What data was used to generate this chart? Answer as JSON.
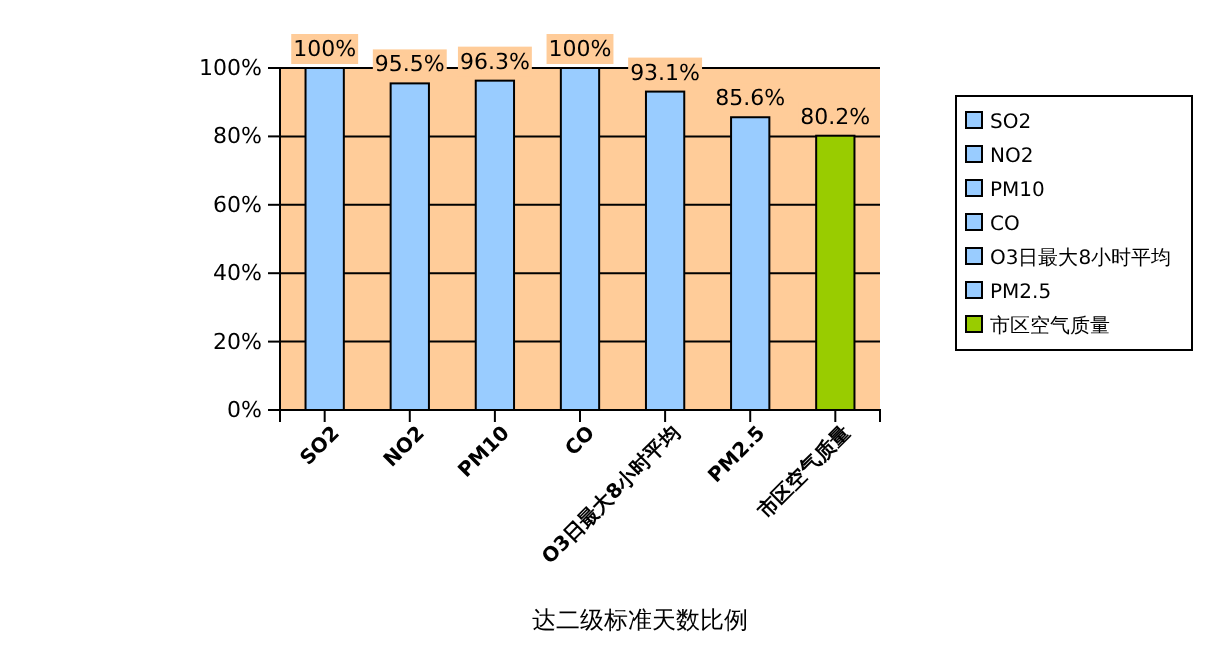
{
  "chart_data": {
    "type": "bar",
    "title": "达二级标准天数比例",
    "categories": [
      "SO2",
      "NO2",
      "PM10",
      "CO",
      "O3日最大8小时平均",
      "PM2.5",
      "市区空气质量"
    ],
    "series": [
      {
        "name": "SO2",
        "color": "#99ccff",
        "values": [
          100,
          null,
          null,
          null,
          null,
          null,
          null
        ],
        "value_labels": [
          "100%",
          null,
          null,
          null,
          null,
          null,
          null
        ]
      },
      {
        "name": "NO2",
        "color": "#99ccff",
        "values": [
          null,
          95.5,
          null,
          null,
          null,
          null,
          null
        ],
        "value_labels": [
          null,
          "95.5%",
          null,
          null,
          null,
          null,
          null
        ]
      },
      {
        "name": "PM10",
        "color": "#99ccff",
        "values": [
          null,
          null,
          96.3,
          null,
          null,
          null,
          null
        ],
        "value_labels": [
          null,
          null,
          "96.3%",
          null,
          null,
          null,
          null
        ]
      },
      {
        "name": "CO",
        "color": "#99ccff",
        "values": [
          null,
          null,
          null,
          100,
          null,
          null,
          null
        ],
        "value_labels": [
          null,
          null,
          null,
          "100%",
          null,
          null,
          null
        ]
      },
      {
        "name": "O3日最大8小时平均",
        "color": "#99ccff",
        "values": [
          null,
          null,
          null,
          null,
          93.1,
          null,
          null
        ],
        "value_labels": [
          null,
          null,
          null,
          null,
          "93.1%",
          null,
          null
        ]
      },
      {
        "name": "PM2.5",
        "color": "#99ccff",
        "values": [
          null,
          null,
          null,
          null,
          null,
          85.6,
          null
        ],
        "value_labels": [
          null,
          null,
          null,
          null,
          null,
          "85.6%",
          null
        ]
      },
      {
        "name": "市区空气质量",
        "color": "#99cc00",
        "values": [
          null,
          null,
          null,
          null,
          null,
          null,
          80.2
        ],
        "value_labels": [
          null,
          null,
          null,
          null,
          null,
          null,
          "80.2%"
        ]
      }
    ],
    "ylim": [
      0,
      100
    ],
    "yticks": [
      {
        "value": 0,
        "label": "0%"
      },
      {
        "value": 20,
        "label": "20%"
      },
      {
        "value": 40,
        "label": "40%"
      },
      {
        "value": 60,
        "label": "60%"
      },
      {
        "value": 80,
        "label": "80%"
      },
      {
        "value": 100,
        "label": "100%"
      }
    ],
    "grid": "y",
    "legend": "right"
  }
}
